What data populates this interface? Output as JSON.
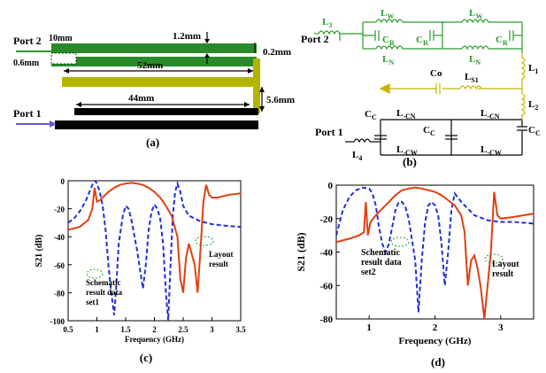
{
  "panel_a": {
    "label": "(a)",
    "port2": "Port 2",
    "port1": "Port 1",
    "dim_10mm": "10mm",
    "dim_06mm": "0.6mm",
    "dim_12mm": "1.2mm",
    "dim_02mm": "0.2mm",
    "dim_52mm": "52mm",
    "dim_56mm": "5.6mm",
    "dim_44mm": "44mm",
    "colors": {
      "green_trace": "#2a8a2a",
      "olive_trace": "#b3b300",
      "black_trace": "#000000",
      "port2_arrow": "#2a9a2a",
      "port1_arrow": "#6a5acd"
    }
  },
  "panel_b": {
    "label": "(b)",
    "port2": "Port 2",
    "port1": "Port 1",
    "L3": "L",
    "L3s": "3",
    "LW": "L",
    "LWs": "W",
    "LN": "L",
    "LNs": "N",
    "CR": "C",
    "CRs": "R",
    "L1": "L",
    "L1s": "1",
    "L2": "L",
    "L2s": "2",
    "LS1": "L",
    "LS1s": "S1",
    "Co": "Co",
    "CC": "C",
    "CCs": "C",
    "LCN": "L",
    "LCNs": "-CN",
    "LCW": "L",
    "LCWs": "-CW",
    "L4": "L",
    "L4s": "4"
  },
  "chart_data": [
    {
      "id": "c",
      "type": "line",
      "panel_label": "(c)",
      "xlabel": "Frequency (GHz)",
      "ylabel": "S21 (dB)",
      "xlim": [
        0.5,
        3.5
      ],
      "ylim": [
        -100,
        0
      ],
      "xticks": [
        "0.5",
        "1",
        "1.5",
        "2",
        "2.5",
        "3",
        "3.5"
      ],
      "yticks": [
        "0",
        "-20",
        "-40",
        "-60",
        "-80",
        "-100"
      ],
      "annotations": [
        "Schematic result data set1",
        "Layout result"
      ],
      "series": [
        {
          "style": "dashed",
          "color": "#1f2fd6",
          "x": [
            0.5,
            0.6,
            0.7,
            0.8,
            0.88,
            0.93,
            0.97,
            1.0,
            1.05,
            1.1,
            1.15,
            1.2,
            1.25,
            1.3,
            1.33,
            1.38,
            1.45,
            1.5,
            1.55,
            1.6,
            1.7,
            1.8,
            1.85,
            1.9,
            1.95,
            2.0,
            2.05,
            2.1,
            2.15,
            2.2,
            2.24,
            2.28,
            2.32,
            2.36,
            2.4,
            2.45,
            2.5,
            2.6,
            2.8,
            3.0,
            3.2,
            3.5
          ],
          "y": [
            -30,
            -27,
            -22,
            -15,
            -7,
            -2,
            0,
            -2,
            -8,
            -18,
            -35,
            -60,
            -80,
            -96,
            -80,
            -45,
            -25,
            -18,
            -20,
            -28,
            -50,
            -77,
            -60,
            -35,
            -22,
            -17,
            -20,
            -27,
            -45,
            -80,
            -100,
            -60,
            -25,
            -8,
            -2,
            -8,
            -18,
            -25,
            -29,
            -31,
            -32,
            -33
          ]
        },
        {
          "style": "solid",
          "color": "#e04010",
          "x": [
            0.5,
            0.7,
            0.85,
            0.92,
            0.96,
            1.0,
            1.05,
            1.1,
            1.2,
            1.3,
            1.4,
            1.5,
            1.6,
            1.7,
            1.8,
            1.9,
            2.0,
            2.1,
            2.2,
            2.3,
            2.4,
            2.45,
            2.5,
            2.55,
            2.6,
            2.7,
            2.75,
            2.8,
            2.85,
            2.9,
            2.95,
            3.0,
            3.1,
            3.2,
            3.3,
            3.5
          ],
          "y": [
            -35,
            -33,
            -28,
            -20,
            -5,
            -15,
            -14,
            -12,
            -8,
            -5,
            -3,
            -2,
            -1.5,
            -2,
            -3,
            -5,
            -8,
            -12,
            -18,
            -25,
            -40,
            -70,
            -80,
            -55,
            -45,
            -60,
            -80,
            -50,
            -15,
            -3,
            -10,
            -12,
            -12,
            -11,
            -10,
            -9
          ]
        }
      ]
    },
    {
      "id": "d",
      "type": "line",
      "panel_label": "(d)",
      "xlabel": "Frequency (GHz)",
      "ylabel": "S21 (dB)",
      "xlim": [
        0.5,
        3.5
      ],
      "ylim": [
        -80,
        0
      ],
      "xticks": [
        "1",
        "2",
        "3"
      ],
      "yticks": [
        "0",
        "-20",
        "-40",
        "-60",
        "-80"
      ],
      "annotations": [
        "Schematic result data set2",
        "Layout result"
      ],
      "series": [
        {
          "style": "dashed",
          "color": "#1f2fd6",
          "x": [
            0.5,
            0.6,
            0.7,
            0.8,
            0.9,
            1.0,
            1.05,
            1.1,
            1.15,
            1.2,
            1.25,
            1.3,
            1.35,
            1.4,
            1.45,
            1.5,
            1.55,
            1.6,
            1.7,
            1.75,
            1.8,
            1.85,
            1.9,
            1.95,
            2.0,
            2.05,
            2.1,
            2.15,
            2.2,
            2.25,
            2.3,
            2.4,
            2.6,
            2.8,
            3.0,
            3.2,
            3.5
          ],
          "y": [
            -30,
            -15,
            -7,
            -3,
            -1.5,
            -2,
            -5,
            -12,
            -25,
            -35,
            -40,
            -35,
            -25,
            -15,
            -10,
            -10,
            -13,
            -20,
            -45,
            -76,
            -45,
            -22,
            -12,
            -10,
            -12,
            -18,
            -35,
            -60,
            -40,
            -15,
            -5,
            -10,
            -18,
            -21,
            -22,
            -22,
            -23
          ]
        },
        {
          "style": "solid",
          "color": "#e04010",
          "x": [
            0.5,
            0.7,
            0.85,
            0.92,
            0.95,
            0.98,
            1.02,
            1.1,
            1.2,
            1.3,
            1.4,
            1.5,
            1.6,
            1.7,
            1.8,
            1.9,
            2.0,
            2.1,
            2.2,
            2.3,
            2.4,
            2.45,
            2.5,
            2.55,
            2.6,
            2.65,
            2.7,
            2.75,
            2.8,
            2.85,
            2.9,
            2.95,
            3.0,
            3.2,
            3.5
          ],
          "y": [
            -34,
            -32,
            -30,
            -28,
            -10,
            -30,
            -22,
            -18,
            -14,
            -10,
            -6,
            -3,
            -2,
            -1.5,
            -2,
            -3,
            -4,
            -6,
            -9,
            -12,
            -18,
            -28,
            -60,
            -45,
            -42,
            -50,
            -62,
            -80,
            -60,
            -40,
            -4,
            -18,
            -20,
            -19,
            -17
          ]
        }
      ]
    }
  ]
}
